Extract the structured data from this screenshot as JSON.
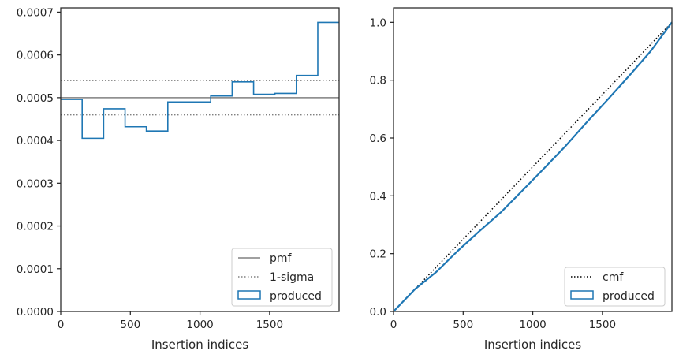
{
  "colors": {
    "produced": "#1f77b4",
    "pmf": "#808080",
    "sigma": "#808080",
    "cmf": "#000000",
    "axes": "#262626"
  },
  "chart_data": [
    {
      "type": "step",
      "xlabel": "Insertion indices",
      "ylabel": "",
      "xlim": [
        0,
        1999
      ],
      "ylim": [
        0,
        0.00071
      ],
      "xticks": [
        0,
        500,
        1000,
        1500
      ],
      "xtick_labels": [
        "0",
        "500",
        "1000",
        "1500"
      ],
      "yticks": [
        0,
        0.0001,
        0.0002,
        0.0003,
        0.0004,
        0.0005,
        0.0006,
        0.0007
      ],
      "ytick_labels": [
        "0.0000",
        "0.0001",
        "0.0002",
        "0.0003",
        "0.0004",
        "0.0005",
        "0.0006",
        "0.0007"
      ],
      "grid": false,
      "legend_position": "lower-right",
      "pmf": 0.0005,
      "sigma_band": [
        0.00046,
        0.00054
      ],
      "series": [
        {
          "name": "produced",
          "bin_edges": [
            0,
            154,
            308,
            462,
            615,
            769,
            923,
            1077,
            1231,
            1385,
            1538,
            1692,
            1846,
            1999
          ],
          "values": [
            0.000496,
            0.000405,
            0.000474,
            0.000432,
            0.000422,
            0.00049,
            0.00049,
            0.000504,
            0.000537,
            0.000508,
            0.00051,
            0.000552,
            0.000676
          ]
        }
      ],
      "legend": [
        {
          "label": "pmf",
          "style": "solid"
        },
        {
          "label": "1-sigma",
          "style": "dotted"
        },
        {
          "label": "produced",
          "style": "box"
        }
      ]
    },
    {
      "type": "line",
      "xlabel": "Insertion indices",
      "ylabel": "",
      "xlim": [
        0,
        1999
      ],
      "ylim": [
        0,
        1.05
      ],
      "xticks": [
        0,
        500,
        1000,
        1500
      ],
      "xtick_labels": [
        "0",
        "500",
        "1000",
        "1500"
      ],
      "yticks": [
        0,
        0.2,
        0.4,
        0.6,
        0.8,
        1.0
      ],
      "ytick_labels": [
        "0.0",
        "0.2",
        "0.4",
        "0.6",
        "0.8",
        "1.0"
      ],
      "grid": false,
      "legend_position": "lower-right",
      "series": [
        {
          "name": "cmf",
          "x": [
            0,
            1999
          ],
          "y": [
            0,
            1.0
          ]
        },
        {
          "name": "produced",
          "x": [
            0,
            154,
            308,
            462,
            615,
            769,
            923,
            1077,
            1231,
            1385,
            1538,
            1692,
            1846,
            1999
          ],
          "y": [
            0,
            0.077,
            0.137,
            0.21,
            0.277,
            0.342,
            0.417,
            0.493,
            0.57,
            0.653,
            0.733,
            0.815,
            0.9,
            1.0
          ]
        }
      ],
      "legend": [
        {
          "label": "cmf",
          "style": "dotted"
        },
        {
          "label": "produced",
          "style": "box"
        }
      ]
    }
  ]
}
